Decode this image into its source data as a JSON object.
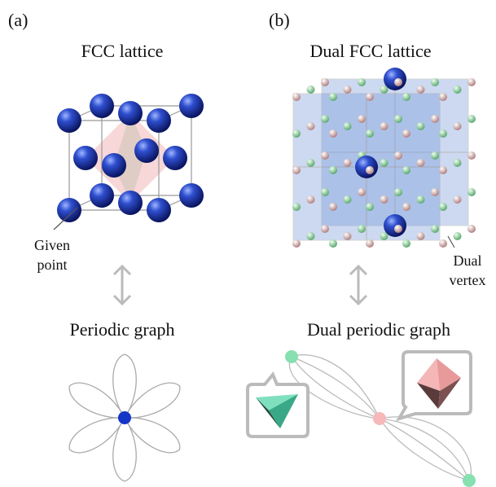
{
  "panel_a": {
    "label": "(a)",
    "title": "FCC lattice",
    "annotation": [
      "Given",
      "point"
    ],
    "graph_title": "Periodic graph"
  },
  "panel_b": {
    "label": "(b)",
    "title": "Dual FCC lattice",
    "annotation": [
      "Dual",
      "vertex"
    ],
    "graph_title": "Dual periodic graph"
  }
}
